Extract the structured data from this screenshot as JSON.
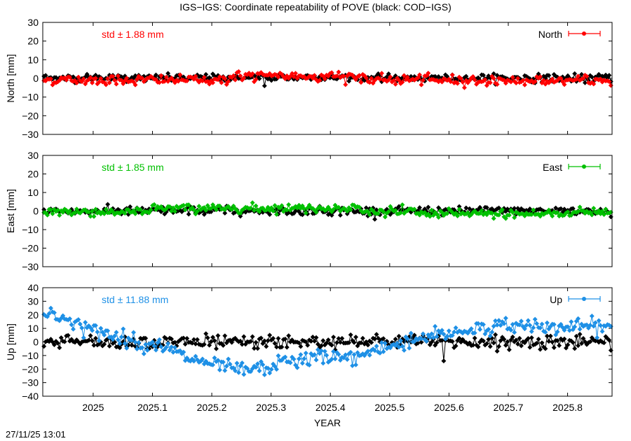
{
  "title": "IGS−IGS: Coordinate repeatability of POVE (black: COD−IGS)",
  "timestamp": "27/11/25 13:01",
  "colors": {
    "North": "#ff0000",
    "East": "#00c000",
    "Up": "#1e90e6",
    "reference": "#000000"
  },
  "chart_data": [
    {
      "type": "line",
      "panel": "north",
      "ylabel": "North [mm]",
      "ylim": [
        -30,
        30
      ],
      "yticks": [
        -30,
        -20,
        -10,
        0,
        10,
        20,
        30
      ],
      "xlim": [
        2024.915,
        2025.875
      ],
      "std_label": "std ± 1.88 mm",
      "legend": {
        "label": "North",
        "position": "top-right"
      },
      "series": [
        {
          "name": "North",
          "color": "#ff0000",
          "style": "points+errorbars",
          "offset_profile": "slightly_negative_then_positive_mid_then_negative",
          "x_range": [
            2024.915,
            2025.875
          ],
          "y_range": [
            -5,
            6
          ]
        },
        {
          "style": "points",
          "color": "#000000",
          "y_range": [
            -5,
            4
          ]
        }
      ]
    },
    {
      "type": "line",
      "panel": "east",
      "ylabel": "East [mm]",
      "ylim": [
        -30,
        30
      ],
      "yticks": [
        -30,
        -20,
        -10,
        0,
        10,
        20,
        30
      ],
      "xlim": [
        2024.915,
        2025.875
      ],
      "std_label": "std ± 1.85 mm",
      "legend": {
        "label": "East",
        "position": "top-right"
      },
      "series": [
        {
          "name": "East",
          "color": "#00c000",
          "style": "points+errorbars",
          "x_range": [
            2024.915,
            2025.875
          ],
          "y_range": [
            -5,
            5
          ]
        },
        {
          "style": "points",
          "color": "#000000",
          "y_range": [
            -3,
            3
          ]
        }
      ]
    },
    {
      "type": "line",
      "panel": "up",
      "ylabel": "Up [mm]",
      "ylim": [
        -40,
        40
      ],
      "yticks": [
        -40,
        -30,
        -20,
        -10,
        0,
        10,
        20,
        30,
        40
      ],
      "xlim": [
        2024.915,
        2025.875
      ],
      "xticks": [
        2025,
        2025.1,
        2025.2,
        2025.3,
        2025.4,
        2025.5,
        2025.6,
        2025.7,
        2025.8
      ],
      "xticklabels": [
        "2025",
        "2025.1",
        "2025.2",
        "2025.3",
        "2025.4",
        "2025.5",
        "2025.6",
        "2025.7",
        "2025.8"
      ],
      "xlabel": "YEAR",
      "std_label": "std ± 11.88 mm",
      "legend": {
        "label": "Up",
        "position": "top-right"
      },
      "series": [
        {
          "name": "Up",
          "color": "#1e90e6",
          "style": "points+errorbars",
          "trend_x": [
            2024.915,
            2024.93,
            2024.95,
            2024.98,
            2025.0,
            2025.03,
            2025.06,
            2025.09,
            2025.12,
            2025.15,
            2025.18,
            2025.21,
            2025.24,
            2025.27,
            2025.3,
            2025.33,
            2025.36,
            2025.39,
            2025.42,
            2025.45,
            2025.48,
            2025.51,
            2025.53,
            2025.56,
            2025.59,
            2025.62,
            2025.65,
            2025.68,
            2025.71,
            2025.74,
            2025.77,
            2025.8,
            2025.83,
            2025.875
          ],
          "trend_y": [
            19,
            21,
            18,
            12,
            8,
            5,
            2,
            -2,
            -4,
            -10,
            -15,
            -18,
            -20,
            -21,
            -18,
            -14,
            -13,
            -10,
            -12,
            -11,
            -5,
            -2,
            1,
            4,
            6,
            8,
            10,
            11,
            12,
            13,
            11,
            10,
            12,
            11
          ]
        },
        {
          "style": "points",
          "color": "#000000",
          "y_range": [
            -15,
            8
          ]
        }
      ]
    }
  ]
}
